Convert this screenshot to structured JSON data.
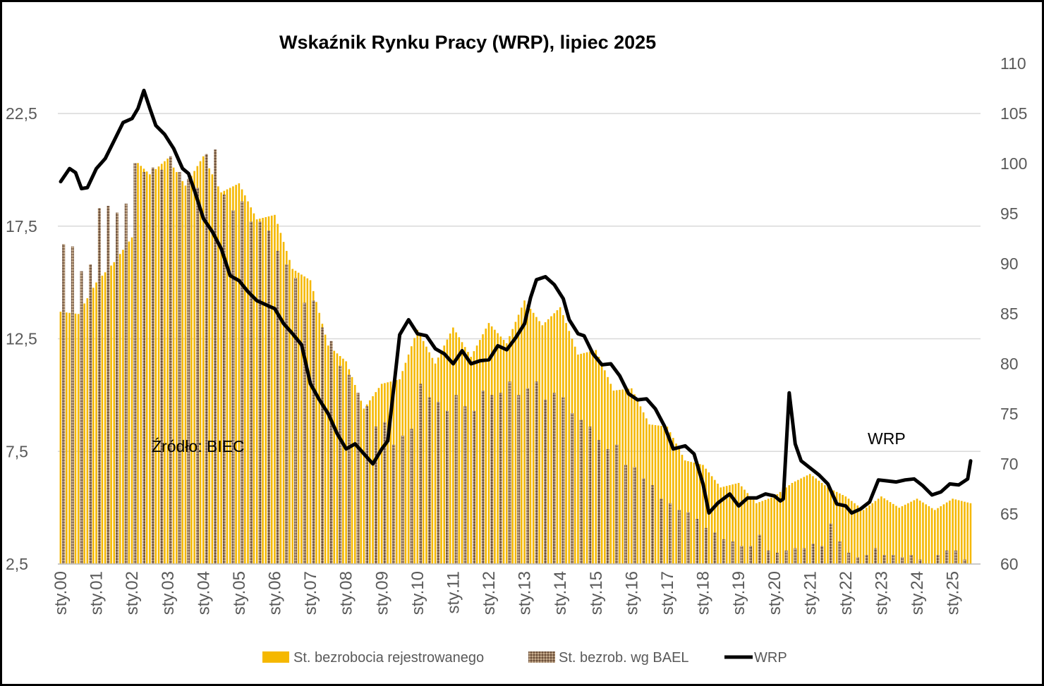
{
  "chart_data": {
    "type": "bar",
    "title": "Wskaźnik Rynku Pracy (WRP), lipiec 2025",
    "annotations": [
      "Źródło: BIEC",
      "WRP"
    ],
    "left_axis": {
      "ticks": [
        "2,5",
        "7,5",
        "12,5",
        "17,5",
        "22,5"
      ],
      "tick_values": [
        2.5,
        7.5,
        12.5,
        17.5,
        22.5
      ],
      "range": [
        2.5,
        23.5
      ]
    },
    "right_axis": {
      "ticks": [
        "60",
        "65",
        "70",
        "75",
        "80",
        "85",
        "90",
        "95",
        "100",
        "105",
        "110"
      ],
      "tick_values": [
        60,
        65,
        70,
        75,
        80,
        85,
        90,
        95,
        100,
        105,
        110
      ],
      "range": [
        60,
        110
      ]
    },
    "x_axis": {
      "labels": [
        "sty.00",
        "sty.01",
        "sty.02",
        "sty.03",
        "sty.04",
        "sty.05",
        "sty.06",
        "sty.07",
        "sty.08",
        "sty.09",
        "sty.10",
        "sty.11",
        "sty.12",
        "sty.13",
        "sty.14",
        "sty.15",
        "sty.16",
        "sty.17",
        "sty.18",
        "sty.19",
        "sty.20",
        "sty.21",
        "sty.22",
        "sty.23",
        "sty.24",
        "sty.25"
      ],
      "start": "2000-01",
      "end": "2025-07"
    },
    "grid": "horizontal",
    "legend_position": "bottom",
    "series": [
      {
        "name": "St. bezrobocia rejestrowanego",
        "type": "bar",
        "axis": "left",
        "color": "#F5B800",
        "points": [
          [
            "2000-01",
            13.7
          ],
          [
            "2000-07",
            13.6
          ],
          [
            "2001-01",
            15.0
          ],
          [
            "2001-07",
            15.9
          ],
          [
            "2002-01",
            17.0
          ],
          [
            "2002-03",
            20.3
          ],
          [
            "2002-07",
            19.8
          ],
          [
            "2003-01",
            20.5
          ],
          [
            "2003-07",
            19.3
          ],
          [
            "2004-01",
            20.6
          ],
          [
            "2004-07",
            19.0
          ],
          [
            "2005-01",
            19.4
          ],
          [
            "2005-07",
            17.8
          ],
          [
            "2006-01",
            18.0
          ],
          [
            "2006-07",
            15.6
          ],
          [
            "2007-01",
            15.1
          ],
          [
            "2007-07",
            12.2
          ],
          [
            "2008-01",
            11.5
          ],
          [
            "2008-07",
            9.4
          ],
          [
            "2009-01",
            10.5
          ],
          [
            "2009-07",
            10.7
          ],
          [
            "2010-01",
            12.9
          ],
          [
            "2010-07",
            11.4
          ],
          [
            "2011-01",
            13.0
          ],
          [
            "2011-07",
            11.7
          ],
          [
            "2012-01",
            13.2
          ],
          [
            "2012-07",
            12.3
          ],
          [
            "2013-01",
            14.2
          ],
          [
            "2013-07",
            13.1
          ],
          [
            "2014-01",
            13.9
          ],
          [
            "2014-07",
            11.8
          ],
          [
            "2015-01",
            12.0
          ],
          [
            "2015-07",
            10.2
          ],
          [
            "2016-01",
            10.3
          ],
          [
            "2016-07",
            8.7
          ],
          [
            "2017-01",
            8.6
          ],
          [
            "2017-07",
            7.1
          ],
          [
            "2018-01",
            6.9
          ],
          [
            "2018-07",
            5.9
          ],
          [
            "2019-01",
            6.1
          ],
          [
            "2019-07",
            5.2
          ],
          [
            "2020-01",
            5.5
          ],
          [
            "2020-07",
            6.1
          ],
          [
            "2021-01",
            6.5
          ],
          [
            "2021-07",
            5.9
          ],
          [
            "2022-01",
            5.5
          ],
          [
            "2022-07",
            4.9
          ],
          [
            "2023-01",
            5.5
          ],
          [
            "2023-07",
            5.0
          ],
          [
            "2024-01",
            5.4
          ],
          [
            "2024-07",
            4.9
          ],
          [
            "2025-01",
            5.4
          ],
          [
            "2025-07",
            5.2
          ]
        ]
      },
      {
        "name": "St. bezrob. wg BAEL",
        "type": "bar",
        "axis": "left",
        "color": "#8B6B50",
        "frequency": "quarterly",
        "values": [
          16.7,
          16.6,
          15.5,
          15.8,
          18.3,
          18.4,
          18.1,
          18.5,
          20.3,
          19.9,
          20.1,
          20.0,
          20.6,
          19.9,
          19.6,
          19.2,
          20.7,
          20.9,
          18.9,
          18.2,
          18.6,
          17.7,
          17.7,
          17.3,
          16.4,
          15.8,
          15.2,
          14.1,
          14.2,
          13.0,
          12.4,
          11.3,
          10.9,
          10.1,
          9.5,
          8.6,
          8.8,
          7.8,
          8.2,
          8.5,
          10.5,
          9.9,
          9.7,
          9.3,
          10.0,
          9.5,
          9.3,
          10.2,
          10.0,
          10.1,
          10.6,
          10.0,
          10.3,
          10.6,
          9.8,
          10.1,
          9.9,
          9.2,
          8.9,
          8.6,
          8.0,
          7.6,
          7.8,
          6.9,
          6.8,
          6.3,
          6.0,
          5.4,
          5.2,
          4.9,
          4.8,
          4.5,
          4.1,
          3.9,
          3.6,
          3.5,
          3.3,
          3.3,
          3.8,
          3.1,
          3.0,
          3.1,
          3.2,
          3.2,
          3.4,
          3.3,
          4.3,
          3.5,
          3.0,
          2.8,
          2.9,
          3.2,
          2.9,
          2.9,
          2.8,
          2.9,
          2.7,
          2.5,
          2.9,
          3.1,
          3.1,
          2.7,
          2.9,
          2.9,
          3.5
        ]
      },
      {
        "name": "WRP",
        "type": "line",
        "axis": "right",
        "color": "#000000",
        "points": [
          [
            "2000-01",
            98.2
          ],
          [
            "2000-04",
            99.5
          ],
          [
            "2000-06",
            99.1
          ],
          [
            "2000-08",
            97.5
          ],
          [
            "2000-10",
            97.6
          ],
          [
            "2001-01",
            99.5
          ],
          [
            "2001-04",
            100.5
          ],
          [
            "2001-07",
            102.3
          ],
          [
            "2001-10",
            104.1
          ],
          [
            "2002-01",
            104.5
          ],
          [
            "2002-03",
            105.5
          ],
          [
            "2002-05",
            107.3
          ],
          [
            "2002-07",
            105.5
          ],
          [
            "2002-09",
            103.8
          ],
          [
            "2002-12",
            102.9
          ],
          [
            "2003-03",
            101.5
          ],
          [
            "2003-06",
            99.5
          ],
          [
            "2003-08",
            99.0
          ],
          [
            "2003-10",
            97.3
          ],
          [
            "2004-01",
            94.5
          ],
          [
            "2004-04",
            93.2
          ],
          [
            "2004-07",
            91.5
          ],
          [
            "2004-10",
            88.8
          ],
          [
            "2005-01",
            88.3
          ],
          [
            "2005-04",
            87.2
          ],
          [
            "2005-07",
            86.3
          ],
          [
            "2006-01",
            85.5
          ],
          [
            "2006-04",
            84.0
          ],
          [
            "2006-07",
            83.0
          ],
          [
            "2006-10",
            81.9
          ],
          [
            "2007-01",
            78.0
          ],
          [
            "2007-04",
            76.4
          ],
          [
            "2007-07",
            75.0
          ],
          [
            "2007-10",
            73.0
          ],
          [
            "2008-01",
            71.5
          ],
          [
            "2008-04",
            72.0
          ],
          [
            "2008-07",
            71.0
          ],
          [
            "2008-10",
            70.0
          ],
          [
            "2009-01",
            71.5
          ],
          [
            "2009-03",
            72.3
          ],
          [
            "2009-05",
            77.6
          ],
          [
            "2009-07",
            82.9
          ],
          [
            "2009-10",
            84.4
          ],
          [
            "2010-01",
            83.0
          ],
          [
            "2010-04",
            82.8
          ],
          [
            "2010-07",
            81.5
          ],
          [
            "2010-10",
            81.0
          ],
          [
            "2011-01",
            80.0
          ],
          [
            "2011-04",
            81.3
          ],
          [
            "2011-07",
            80.0
          ],
          [
            "2011-10",
            80.3
          ],
          [
            "2012-01",
            80.4
          ],
          [
            "2012-04",
            81.8
          ],
          [
            "2012-07",
            81.4
          ],
          [
            "2012-10",
            82.6
          ],
          [
            "2013-01",
            84.0
          ],
          [
            "2013-03",
            86.6
          ],
          [
            "2013-05",
            88.4
          ],
          [
            "2013-08",
            88.7
          ],
          [
            "2013-11",
            87.9
          ],
          [
            "2014-02",
            86.5
          ],
          [
            "2014-04",
            84.4
          ],
          [
            "2014-07",
            83.0
          ],
          [
            "2014-09",
            82.8
          ],
          [
            "2014-12",
            81.0
          ],
          [
            "2015-03",
            79.9
          ],
          [
            "2015-06",
            80.0
          ],
          [
            "2015-09",
            78.8
          ],
          [
            "2015-12",
            77.0
          ],
          [
            "2016-03",
            76.4
          ],
          [
            "2016-06",
            76.5
          ],
          [
            "2016-09",
            75.5
          ],
          [
            "2016-12",
            73.8
          ],
          [
            "2017-03",
            71.5
          ],
          [
            "2017-07",
            71.8
          ],
          [
            "2017-10",
            71.0
          ],
          [
            "2018-01",
            68.0
          ],
          [
            "2018-03",
            65.1
          ],
          [
            "2018-06",
            66.1
          ],
          [
            "2018-10",
            67.0
          ],
          [
            "2019-01",
            65.8
          ],
          [
            "2019-04",
            66.6
          ],
          [
            "2019-07",
            66.6
          ],
          [
            "2019-10",
            67.0
          ],
          [
            "2020-01",
            66.8
          ],
          [
            "2020-03",
            66.3
          ],
          [
            "2020-04",
            66.5
          ],
          [
            "2020-06",
            77.1
          ],
          [
            "2020-08",
            72.0
          ],
          [
            "2020-10",
            70.3
          ],
          [
            "2021-01",
            69.6
          ],
          [
            "2021-04",
            68.9
          ],
          [
            "2021-07",
            68.0
          ],
          [
            "2021-10",
            66.0
          ],
          [
            "2022-01",
            65.8
          ],
          [
            "2022-03",
            65.1
          ],
          [
            "2022-06",
            65.5
          ],
          [
            "2022-09",
            66.2
          ],
          [
            "2022-12",
            68.4
          ],
          [
            "2023-03",
            68.3
          ],
          [
            "2023-06",
            68.2
          ],
          [
            "2023-09",
            68.4
          ],
          [
            "2023-12",
            68.5
          ],
          [
            "2024-03",
            67.8
          ],
          [
            "2024-06",
            66.9
          ],
          [
            "2024-09",
            67.2
          ],
          [
            "2024-12",
            68.0
          ],
          [
            "2025-03",
            67.9
          ],
          [
            "2025-06",
            68.5
          ],
          [
            "2025-07",
            70.3
          ]
        ]
      }
    ]
  }
}
